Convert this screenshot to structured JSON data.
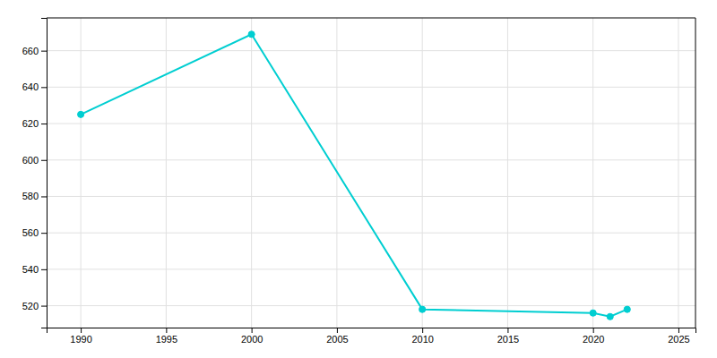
{
  "chart_data": {
    "type": "line",
    "x": [
      1990,
      2000,
      2010,
      2020,
      2021,
      2022
    ],
    "values": [
      625,
      669,
      518,
      516,
      514,
      518
    ],
    "color": "#00CED1",
    "marker": "circle",
    "xlim": [
      1988,
      2026
    ],
    "ylim": [
      508,
      678
    ],
    "xticks": [
      1990,
      1995,
      2000,
      2005,
      2010,
      2015,
      2020,
      2025
    ],
    "yticks": [
      520,
      540,
      560,
      580,
      600,
      620,
      640,
      660
    ],
    "grid": true
  }
}
